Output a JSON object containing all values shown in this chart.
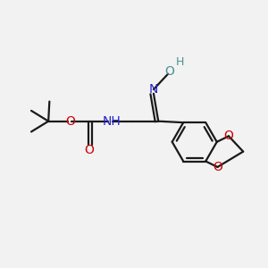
{
  "background_color": "#f2f2f2",
  "bond_color": "#1a1a1a",
  "oxygen_color": "#cc0000",
  "nitrogen_color": "#2222cc",
  "teal_color": "#4a9090",
  "figsize": [
    3.0,
    3.0
  ],
  "dpi": 100,
  "xlim": [
    0,
    10
  ],
  "ylim": [
    0,
    10
  ]
}
